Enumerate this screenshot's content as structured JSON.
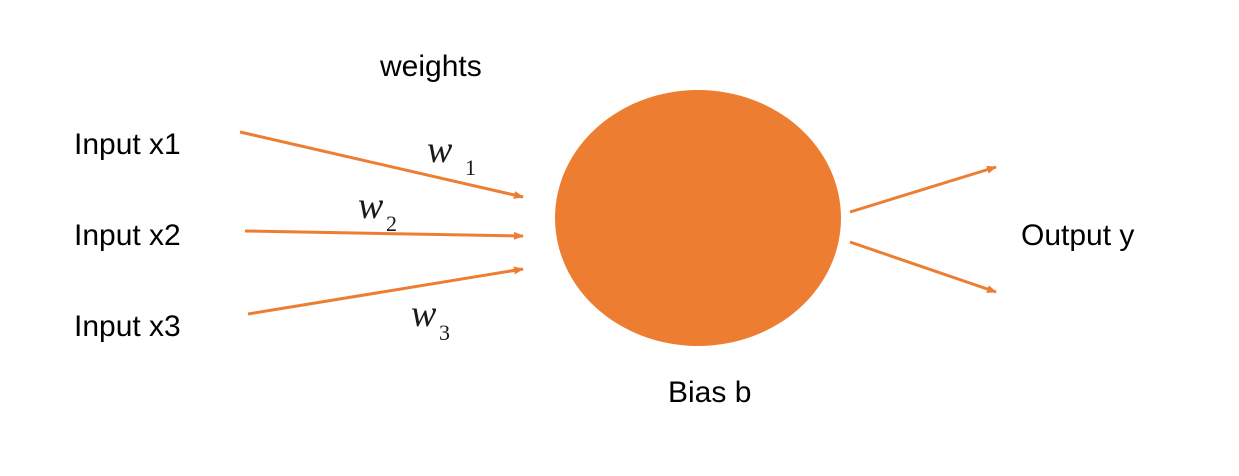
{
  "colors": {
    "accent": "#ED7D31",
    "text": "#000000"
  },
  "labels": {
    "weights": "weights",
    "input_x1": "Input x1",
    "input_x2": "Input x2",
    "input_x3": "Input x3",
    "output": "Output y",
    "bias": "Bias b"
  },
  "weights": [
    {
      "symbol": "w",
      "subscript": "1"
    },
    {
      "symbol": "w",
      "subscript": "2"
    },
    {
      "symbol": "w",
      "subscript": "3"
    }
  ]
}
